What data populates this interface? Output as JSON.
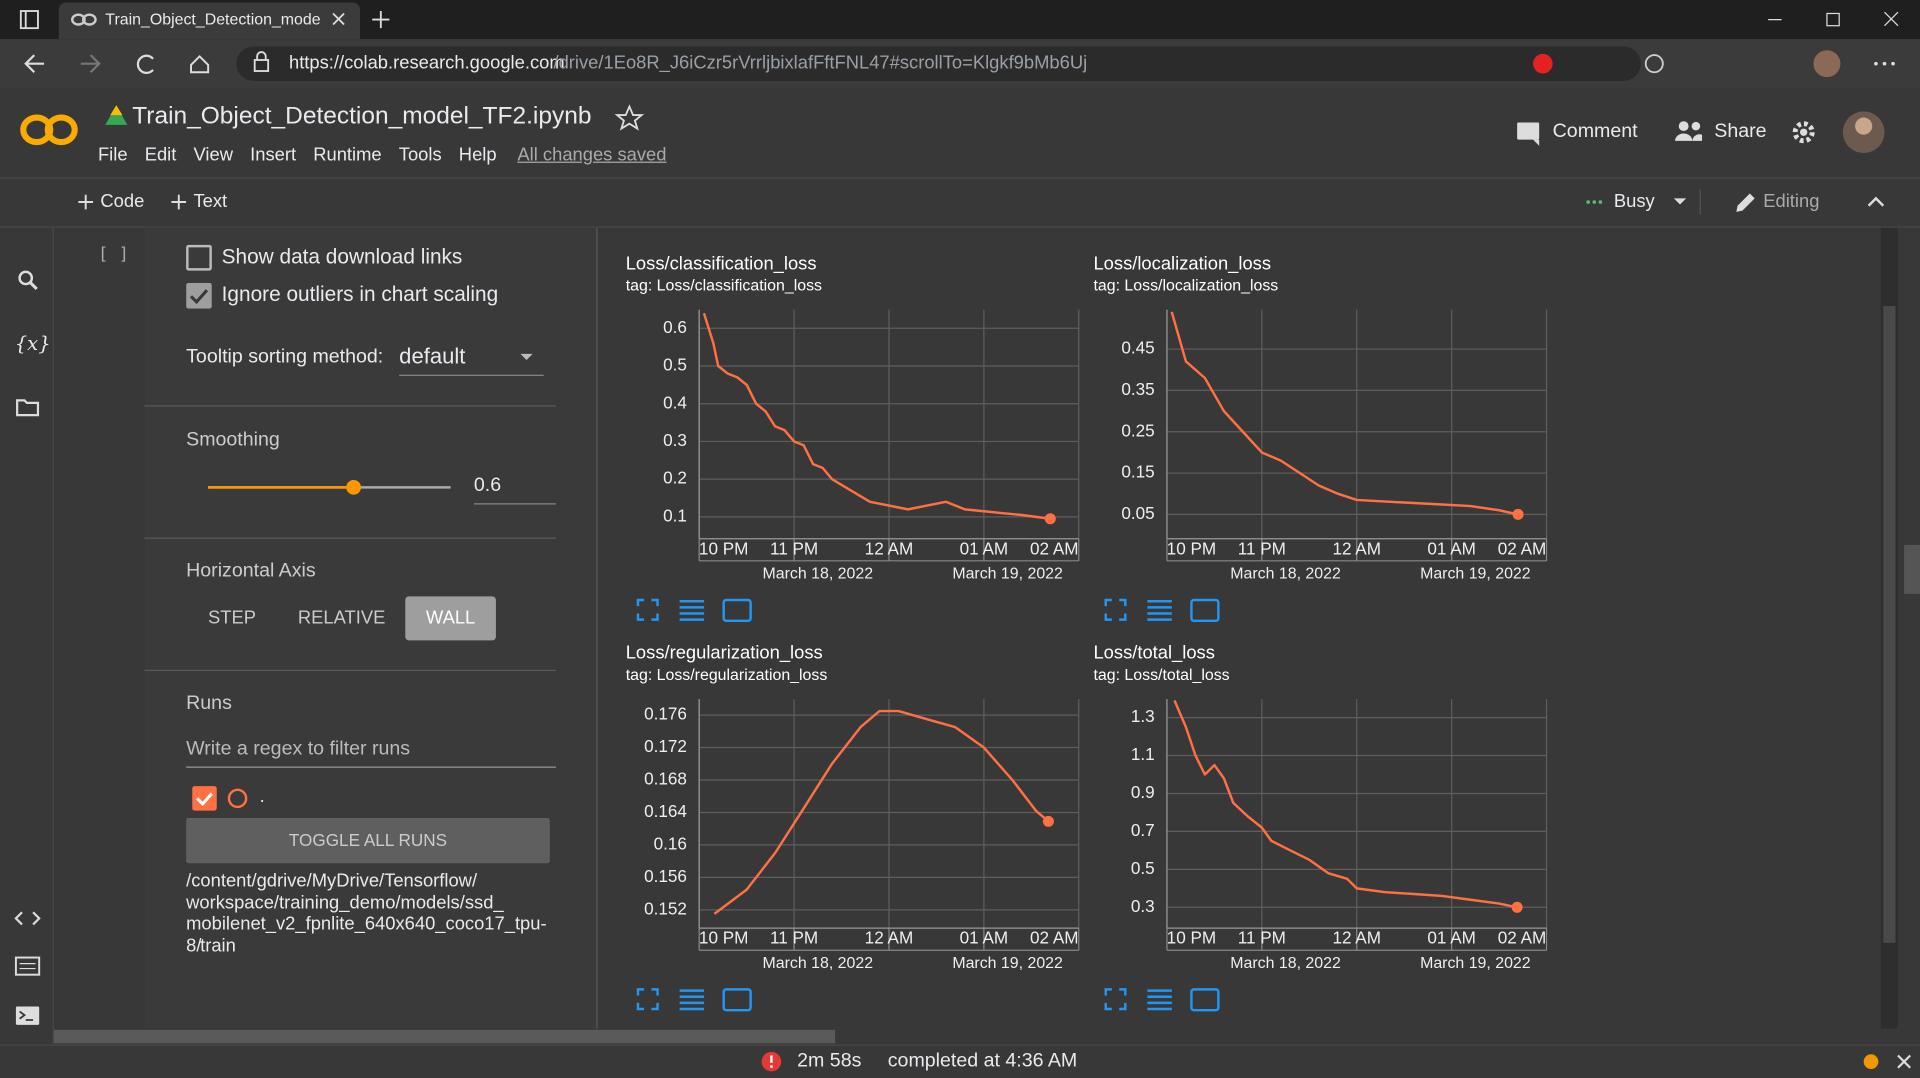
{
  "browser": {
    "tab_title": "Train_Object_Detection_model_T",
    "url_host": "https://colab.research.google.com",
    "url_path": "/drive/1Eo8R_J6iCzr5rVrrljbixlafFftFNL47#scrollTo=Klgkf9bMb6Uj"
  },
  "sidebar": {
    "variables_icon": "{x}"
  },
  "header": {
    "title": "Train_Object_Detection_model_TF2.ipynb",
    "menu": [
      "File",
      "Edit",
      "View",
      "Insert",
      "Runtime",
      "Tools",
      "Help"
    ],
    "save_status": "All changes saved",
    "comment": "Comment",
    "share": "Share"
  },
  "toolbar": {
    "code": "Code",
    "text": "Text",
    "runtime_status": "Busy",
    "mode": "Editing"
  },
  "cell": {
    "run_marker": "[ ]"
  },
  "tensorboard": {
    "settings": {
      "show_download_links": "Show data download links",
      "ignore_outliers": "Ignore outliers in chart scaling",
      "tooltip_label": "Tooltip sorting method:",
      "tooltip_value": "default",
      "smoothing_label": "Smoothing",
      "smoothing_value": 0.6,
      "horizontal_axis_label": "Horizontal Axis",
      "axis_options": [
        "STEP",
        "RELATIVE",
        "WALL"
      ],
      "runs_label": "Runs",
      "runs_filter_placeholder": "Write a regex to filter runs",
      "run_name": ".",
      "toggle_all": "TOGGLE ALL RUNS",
      "run_path": "/content/gdrive/MyDrive/Tensorflow/ workspace/training_demo/models/ssd_ mobilenet_v2_fpnlite_640x640_coco17_tpu-8/ train"
    },
    "charts": [
      {
        "type": "line",
        "title": "Loss/classification_loss",
        "subtitle": "tag: Loss/classification_loss",
        "x": [
          22.05,
          22.15,
          22.2,
          22.3,
          22.4,
          22.5,
          22.6,
          22.7,
          22.8,
          22.9,
          23.0,
          23.1,
          23.2,
          23.3,
          23.4,
          23.6,
          23.8,
          24.0,
          24.2,
          24.4,
          24.6,
          24.8,
          25.0,
          25.2,
          25.4,
          25.55,
          25.7
        ],
        "series": [
          {
            "color": "#ff7043",
            "values": [
              0.64,
              0.56,
              0.5,
              0.48,
              0.47,
              0.45,
              0.4,
              0.38,
              0.34,
              0.33,
              0.3,
              0.29,
              0.24,
              0.23,
              0.2,
              0.17,
              0.14,
              0.13,
              0.12,
              0.13,
              0.14,
              0.12,
              0.115,
              0.11,
              0.105,
              0.1,
              0.095
            ]
          }
        ],
        "xlim": [
          22,
          26
        ],
        "xticks": [
          {
            "value": 22,
            "label": "10 PM"
          },
          {
            "value": 23,
            "label": "11 PM"
          },
          {
            "value": 24,
            "label": "12 AM"
          },
          {
            "value": 25,
            "label": "01 AM"
          },
          {
            "value": 26,
            "label": "02 AM"
          }
        ],
        "x_date_labels": [
          {
            "value": 23.25,
            "label": "March 18, 2022"
          },
          {
            "value": 25.25,
            "label": "March 19, 2022"
          }
        ],
        "ylim": [
          0.042,
          0.649
        ],
        "yticks": [
          0.1,
          0.2,
          0.3,
          0.4,
          0.5,
          0.6
        ],
        "grid": true
      },
      {
        "type": "line",
        "title": "Loss/localization_loss",
        "subtitle": "tag: Loss/localization_loss",
        "x": [
          22.05,
          22.2,
          22.4,
          22.6,
          22.8,
          23.0,
          23.2,
          23.4,
          23.6,
          23.8,
          24.0,
          24.4,
          24.8,
          25.2,
          25.5,
          25.7
        ],
        "series": [
          {
            "color": "#ff7043",
            "values": [
              0.54,
              0.42,
              0.38,
              0.3,
              0.25,
              0.2,
              0.18,
              0.15,
              0.12,
              0.1,
              0.085,
              0.08,
              0.075,
              0.07,
              0.06,
              0.05
            ]
          }
        ],
        "xlim": [
          22,
          26
        ],
        "xticks": [
          {
            "value": 22,
            "label": "10 PM"
          },
          {
            "value": 23,
            "label": "11 PM"
          },
          {
            "value": 24,
            "label": "12 AM"
          },
          {
            "value": 25,
            "label": "01 AM"
          },
          {
            "value": 26,
            "label": "02 AM"
          }
        ],
        "x_date_labels": [
          {
            "value": 23.25,
            "label": "March 18, 2022"
          },
          {
            "value": 25.25,
            "label": "March 19, 2022"
          }
        ],
        "ylim": [
          -0.009,
          0.545
        ],
        "yticks": [
          0.05,
          0.15,
          0.25,
          0.35,
          0.45
        ],
        "grid": true
      },
      {
        "type": "line",
        "title": "Loss/regularization_loss",
        "subtitle": "tag: Loss/regularization_loss",
        "x": [
          22.16,
          22.5,
          22.8,
          23.1,
          23.4,
          23.7,
          23.9,
          24.1,
          24.4,
          24.7,
          25.0,
          25.3,
          25.55,
          25.68
        ],
        "series": [
          {
            "color": "#ff7043",
            "values": [
              0.1515,
              0.1545,
              0.159,
              0.1645,
              0.17,
              0.1745,
              0.1765,
              0.1765,
              0.1755,
              0.1745,
              0.172,
              0.168,
              0.1642,
              0.1629
            ]
          }
        ],
        "xlim": [
          22,
          26
        ],
        "xticks": [
          {
            "value": 22,
            "label": "10 PM"
          },
          {
            "value": 23,
            "label": "11 PM"
          },
          {
            "value": 24,
            "label": "12 AM"
          },
          {
            "value": 25,
            "label": "01 AM"
          },
          {
            "value": 26,
            "label": "02 AM"
          }
        ],
        "x_date_labels": [
          {
            "value": 23.25,
            "label": "March 18, 2022"
          },
          {
            "value": 25.25,
            "label": "March 19, 2022"
          }
        ],
        "ylim": [
          0.14974,
          0.17796
        ],
        "yticks": [
          0.152,
          0.156,
          0.16,
          0.164,
          0.168,
          0.172,
          0.176
        ],
        "grid": true
      },
      {
        "type": "line",
        "title": "Loss/total_loss",
        "subtitle": "tag: Loss/total_loss",
        "x": [
          22.08,
          22.2,
          22.3,
          22.4,
          22.5,
          22.6,
          22.7,
          22.85,
          23.0,
          23.1,
          23.3,
          23.5,
          23.7,
          23.9,
          24.0,
          24.3,
          24.6,
          24.9,
          25.2,
          25.5,
          25.69
        ],
        "series": [
          {
            "color": "#ff7043",
            "values": [
              1.39,
              1.25,
              1.1,
              1.0,
              1.05,
              0.98,
              0.85,
              0.78,
              0.72,
              0.65,
              0.6,
              0.55,
              0.48,
              0.45,
              0.4,
              0.38,
              0.37,
              0.36,
              0.34,
              0.32,
              0.3
            ]
          }
        ],
        "xlim": [
          22,
          26
        ],
        "xticks": [
          {
            "value": 22,
            "label": "10 PM"
          },
          {
            "value": 23,
            "label": "11 PM"
          },
          {
            "value": 24,
            "label": "12 AM"
          },
          {
            "value": 25,
            "label": "01 AM"
          },
          {
            "value": 26,
            "label": "02 AM"
          }
        ],
        "x_date_labels": [
          {
            "value": 23.25,
            "label": "March 18, 2022"
          },
          {
            "value": 25.25,
            "label": "March 19, 2022"
          }
        ],
        "ylim": [
          0.19,
          1.397
        ],
        "yticks": [
          0.3,
          0.5,
          0.7,
          0.9,
          1.1,
          1.3
        ],
        "grid": true
      }
    ]
  },
  "status_bar": {
    "elapsed": "2m 58s",
    "completed": "completed at 4:36 AM"
  }
}
